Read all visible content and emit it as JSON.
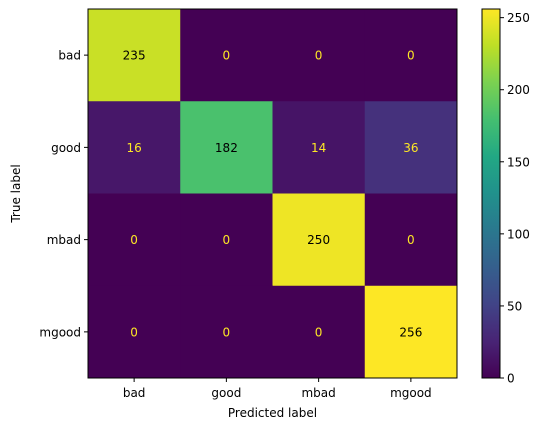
{
  "chart_data": {
    "type": "heatmap",
    "title": "",
    "xlabel": "Predicted label",
    "ylabel": "True label",
    "x_categories": [
      "bad",
      "good",
      "mbad",
      "mgood"
    ],
    "y_categories": [
      "bad",
      "good",
      "mbad",
      "mgood"
    ],
    "values": [
      [
        235,
        0,
        0,
        0
      ],
      [
        16,
        182,
        14,
        36
      ],
      [
        0,
        0,
        250,
        0
      ],
      [
        0,
        0,
        0,
        256
      ]
    ],
    "colormap": "viridis",
    "vmin": 0,
    "vmax": 256,
    "colorbar_ticks": [
      0,
      50,
      100,
      150,
      200,
      250
    ],
    "colors": {
      "low_text": "#fde725",
      "high_text": "#000000"
    }
  }
}
